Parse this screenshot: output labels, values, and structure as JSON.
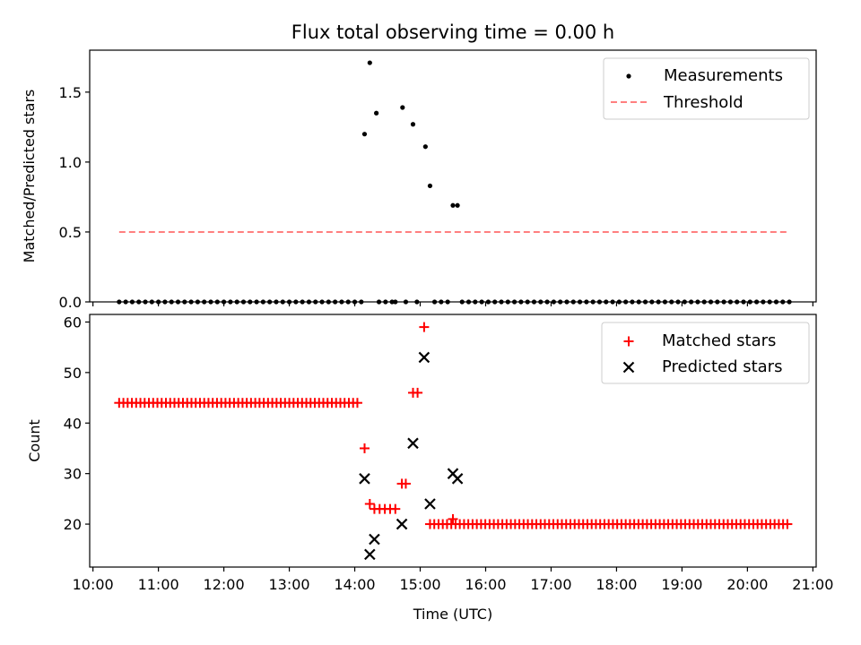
{
  "title": "Flux total observing time = 0.00 h",
  "colors": {
    "threshold": "#ff7f7f",
    "matched": "#ff0000",
    "predicted": "#000000",
    "measurements": "#000000"
  },
  "chart_data": [
    {
      "type": "scatter",
      "panel": "top",
      "title": "Flux total observing time = 0.00 h",
      "xlabel": "",
      "ylabel": "Matched/Predicted stars",
      "xlim": [
        9.95,
        21.05
      ],
      "ylim": [
        0.0,
        1.8
      ],
      "yticks": [
        0.0,
        0.5,
        1.0,
        1.5
      ],
      "ytick_labels": [
        "0.0",
        "0.5",
        "1.0",
        "1.5"
      ],
      "legend_position": "top-right",
      "legend": [
        {
          "name": "Measurements",
          "marker": "dot"
        },
        {
          "name": "Threshold",
          "marker": "dashed-line"
        }
      ],
      "threshold": {
        "value": 0.5,
        "x_start": 10.4,
        "x_end": 20.6
      },
      "zero_run": [
        {
          "start": 10.4,
          "end": 14.07
        },
        {
          "start": 14.37,
          "end": 14.6
        },
        {
          "start": 15.22,
          "end": 15.4
        },
        {
          "start": 15.64,
          "end": 20.6
        }
      ],
      "zero_step": 0.1,
      "measurements_extra": [
        {
          "x": 14.62,
          "y": 0.0
        },
        {
          "x": 14.78,
          "y": 0.0
        },
        {
          "x": 14.95,
          "y": 0.0
        },
        {
          "x": 14.15,
          "y": 1.2
        },
        {
          "x": 14.23,
          "y": 1.71
        },
        {
          "x": 14.33,
          "y": 1.35
        },
        {
          "x": 14.73,
          "y": 1.39
        },
        {
          "x": 14.89,
          "y": 1.27
        },
        {
          "x": 15.08,
          "y": 1.11
        },
        {
          "x": 15.15,
          "y": 0.83
        },
        {
          "x": 15.5,
          "y": 0.69
        },
        {
          "x": 15.57,
          "y": 0.69
        }
      ]
    },
    {
      "type": "scatter",
      "panel": "bottom",
      "xlabel": "Time (UTC)",
      "ylabel": "Count",
      "xlim": [
        9.95,
        21.05
      ],
      "ylim": [
        11.5,
        61.5
      ],
      "xticks": [
        10,
        11,
        12,
        13,
        14,
        15,
        16,
        17,
        18,
        19,
        20,
        21
      ],
      "xtick_labels": [
        "10:00",
        "11:00",
        "12:00",
        "13:00",
        "14:00",
        "15:00",
        "16:00",
        "17:00",
        "18:00",
        "19:00",
        "20:00",
        "21:00"
      ],
      "yticks": [
        20,
        30,
        40,
        50,
        60
      ],
      "ytick_labels": [
        "20",
        "30",
        "40",
        "50",
        "60"
      ],
      "legend_position": "top-right",
      "legend": [
        {
          "name": "Matched stars",
          "marker": "plus"
        },
        {
          "name": "Predicted stars",
          "marker": "x"
        }
      ],
      "matched_runs": [
        {
          "start": 10.4,
          "end": 14.07,
          "y": 44
        },
        {
          "start": 15.15,
          "end": 20.6,
          "y": 20
        }
      ],
      "matched_step": 0.065,
      "matched_extra": [
        {
          "x": 14.15,
          "y": 35
        },
        {
          "x": 14.23,
          "y": 24
        },
        {
          "x": 14.3,
          "y": 23
        },
        {
          "x": 14.38,
          "y": 23
        },
        {
          "x": 14.46,
          "y": 23
        },
        {
          "x": 14.54,
          "y": 23
        },
        {
          "x": 14.62,
          "y": 23
        },
        {
          "x": 14.72,
          "y": 28
        },
        {
          "x": 14.78,
          "y": 28
        },
        {
          "x": 14.89,
          "y": 46
        },
        {
          "x": 14.96,
          "y": 46
        },
        {
          "x": 15.06,
          "y": 59
        },
        {
          "x": 15.5,
          "y": 21
        }
      ],
      "predicted": [
        {
          "x": 14.15,
          "y": 29
        },
        {
          "x": 14.23,
          "y": 14
        },
        {
          "x": 14.3,
          "y": 17
        },
        {
          "x": 14.72,
          "y": 20
        },
        {
          "x": 14.89,
          "y": 36
        },
        {
          "x": 15.06,
          "y": 53
        },
        {
          "x": 15.15,
          "y": 24
        },
        {
          "x": 15.5,
          "y": 30
        },
        {
          "x": 15.57,
          "y": 29
        }
      ]
    }
  ]
}
